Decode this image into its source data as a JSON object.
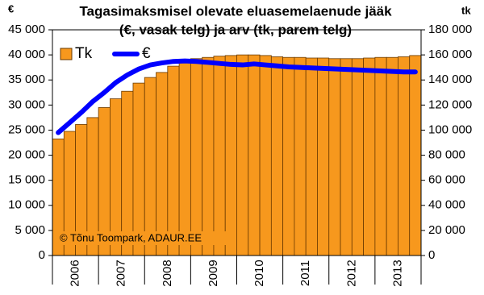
{
  "chart_data": {
    "type": "combo",
    "title": [
      "Tagasimaksmisel olevate eluasemelaenude jääk",
      "(€, vasak telg) ja arv (tk, parem telg)"
    ],
    "y_label": "€",
    "y2_label": "tk",
    "annotation": "© Tõnu Toompark, ADAUR.EE",
    "categories": [
      null,
      "2006",
      null,
      null,
      null,
      "2007",
      null,
      null,
      null,
      "2008",
      null,
      null,
      null,
      "2009",
      null,
      null,
      null,
      "2010",
      null,
      null,
      null,
      "2011",
      null,
      null,
      null,
      "2012",
      null,
      null,
      null,
      "2013",
      null,
      null
    ],
    "series": [
      {
        "name": "Tk",
        "type": "bar",
        "axis": "y2",
        "color": "#f7981d",
        "values": [
          93000,
          99000,
          104500,
          110000,
          118000,
          125000,
          131000,
          137500,
          142000,
          146000,
          151000,
          155000,
          157000,
          158000,
          159000,
          159500,
          160000,
          160000,
          159500,
          158500,
          158000,
          158000,
          157500,
          157500,
          157000,
          157000,
          157000,
          157500,
          158000,
          158000,
          158500,
          159500
        ]
      },
      {
        "name": "€",
        "type": "line",
        "axis": "y",
        "color": "#0000ff",
        "values": [
          24500,
          26500,
          28500,
          30700,
          32500,
          34500,
          36000,
          37200,
          38000,
          38400,
          38700,
          38800,
          38700,
          38500,
          38300,
          38100,
          38000,
          38200,
          38000,
          37800,
          37600,
          37500,
          37400,
          37300,
          37200,
          37100,
          37000,
          36900,
          36800,
          36700,
          36600,
          36600
        ]
      }
    ],
    "ylim": [
      0,
      45000
    ],
    "yticks": [
      0,
      {
        "value": 5000,
        "label": "5 000"
      },
      {
        "value": 10000,
        "label": "10 000"
      },
      {
        "value": 15000,
        "label": "15 000"
      },
      {
        "value": 20000,
        "label": "20 000"
      },
      {
        "value": 25000,
        "label": "25 000"
      },
      {
        "value": 30000,
        "label": "30 000"
      },
      {
        "value": 35000,
        "label": "35 000"
      },
      {
        "value": 40000,
        "label": "40 000"
      },
      {
        "value": 45000,
        "label": "45 000"
      }
    ],
    "y2lim": [
      0,
      180000
    ],
    "y2ticks": [
      0,
      {
        "value": 20000,
        "label": "20 000"
      },
      {
        "value": 40000,
        "label": "40 000"
      },
      {
        "value": 60000,
        "label": "60 000"
      },
      {
        "value": 80000,
        "label": "80 000"
      },
      {
        "value": 100000,
        "label": "100 000"
      },
      {
        "value": 120000,
        "label": "120 000"
      },
      {
        "value": 140000,
        "label": "140 000"
      },
      {
        "value": 160000,
        "label": "160 000"
      },
      {
        "value": 180000,
        "label": "180 000"
      }
    ],
    "legend": "upper-left"
  }
}
